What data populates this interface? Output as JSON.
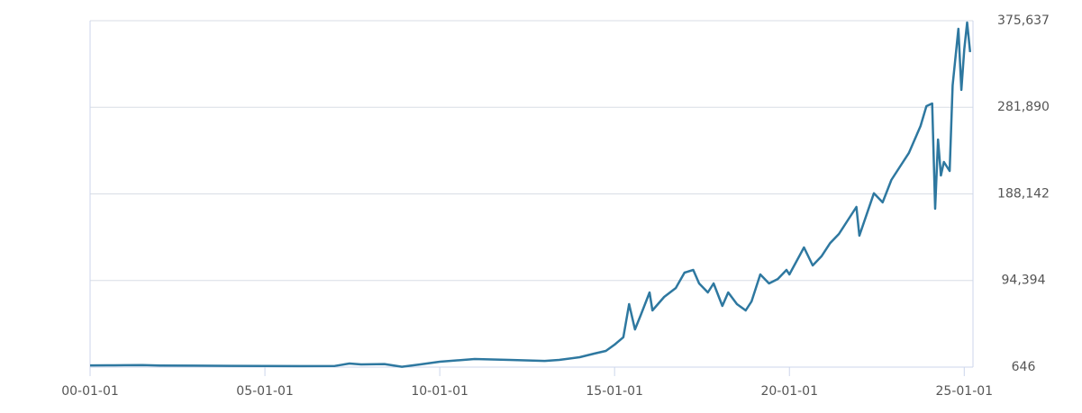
{
  "chart_data": {
    "type": "line",
    "color": "#2e78a0",
    "grid": true,
    "x": [
      "00-01-01",
      "00-07-01",
      "01-01-01",
      "01-07-01",
      "02-01-01",
      "03-01-01",
      "04-01-01",
      "05-01-01",
      "06-01-01",
      "07-01-01",
      "07-06-01",
      "07-10-01",
      "08-06-01",
      "08-12-01",
      "09-06-01",
      "10-01-01",
      "11-01-01",
      "12-01-01",
      "13-01-01",
      "13-06-01",
      "14-01-01",
      "14-06-01",
      "14-10-01",
      "15-01-01",
      "15-04-01",
      "15-06-01",
      "15-08-01",
      "15-10-01",
      "16-01-01",
      "16-02-01",
      "16-06-01",
      "16-10-01",
      "17-01-01",
      "17-04-01",
      "17-06-01",
      "17-09-01",
      "17-11-01",
      "18-02-01",
      "18-04-01",
      "18-07-01",
      "18-10-01",
      "18-12-01",
      "19-03-01",
      "19-06-01",
      "19-09-01",
      "19-12-01",
      "20-01-01",
      "20-06-01",
      "20-09-01",
      "20-12-01",
      "21-03-01",
      "21-06-01",
      "21-09-01",
      "21-12-01",
      "22-01-01",
      "22-06-01",
      "22-09-01",
      "22-12-01",
      "23-03-01",
      "23-06-01",
      "23-10-01",
      "23-12-01",
      "24-02-01",
      "24-03-01",
      "24-04-01",
      "24-05-01",
      "24-06-01",
      "24-08-01",
      "24-09-01",
      "24-11-01",
      "24-12-01",
      "25-01-01",
      "25-02-01",
      "25-03-01"
    ],
    "values": [
      2500,
      2600,
      2700,
      2900,
      2400,
      2200,
      2000,
      1800,
      1700,
      1900,
      4500,
      3600,
      4000,
      1000,
      3500,
      6500,
      9400,
      8400,
      7400,
      8400,
      11400,
      15300,
      18200,
      25000,
      33000,
      68800,
      41500,
      57100,
      81500,
      62000,
      76600,
      86300,
      102900,
      105800,
      91200,
      81500,
      91200,
      66900,
      81500,
      68800,
      62000,
      71700,
      101000,
      91200,
      96000,
      105800,
      101000,
      130200,
      110700,
      120500,
      135000,
      144800,
      159400,
      174000,
      142900,
      188800,
      179000,
      203200,
      217800,
      232400,
      261700,
      283100,
      286000,
      172100,
      247000,
      208100,
      222700,
      213000,
      305600,
      366900,
      300700,
      344500,
      373700,
      341600
    ],
    "xlim": [
      "00-01-01",
      "25-04-01"
    ],
    "xticks": [
      "00-01-01",
      "05-01-01",
      "10-01-01",
      "15-01-01",
      "20-01-01",
      "25-01-01"
    ],
    "ylim": [
      646,
      375637
    ],
    "yticks": [
      {
        "value": 646,
        "label": "646"
      },
      {
        "value": 94394,
        "label": "94,394"
      },
      {
        "value": 188142,
        "label": "188,142"
      },
      {
        "value": 281890,
        "label": "281,890"
      },
      {
        "value": 375637,
        "label": "375,637"
      }
    ]
  }
}
